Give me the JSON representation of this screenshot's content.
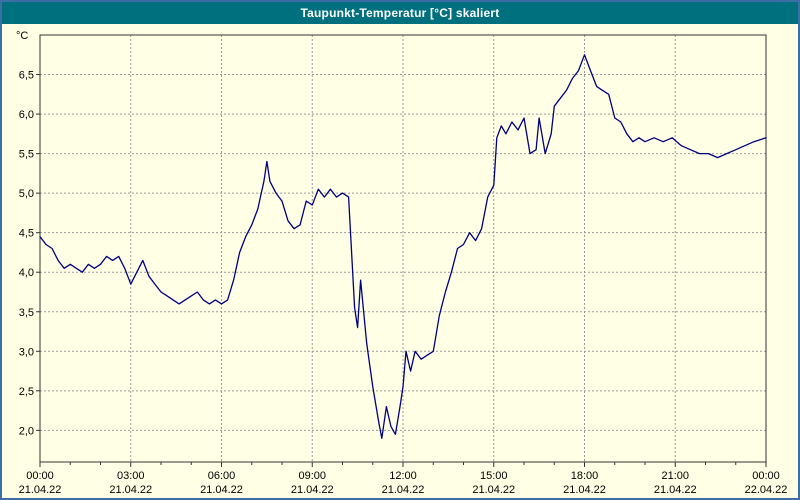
{
  "window": {
    "title": "Taupunkt-Temperatur [°C] skaliert"
  },
  "colors": {
    "background": "#ffffe6",
    "border": "#3a6ea5",
    "titlebar": "#00707e",
    "title_text": "#ffffff",
    "grid": "#999999",
    "frame": "#333333",
    "text": "#000000",
    "line": "#000080"
  },
  "chart_data": {
    "type": "line",
    "title": "Taupunkt-Temperatur [°C] skaliert",
    "unit_label": "°C",
    "xlabel": "",
    "ylabel": "Taupunkt-Temperatur",
    "xlim": [
      0,
      24
    ],
    "ylim": [
      1.6,
      7.0
    ],
    "grid": "dashed",
    "legend": "none",
    "line_color": "#000080",
    "y_ticks": [
      {
        "value": 2.0,
        "label": "2,0"
      },
      {
        "value": 2.5,
        "label": "2,5"
      },
      {
        "value": 3.0,
        "label": "3,0"
      },
      {
        "value": 3.5,
        "label": "3,5"
      },
      {
        "value": 4.0,
        "label": "4,0"
      },
      {
        "value": 4.5,
        "label": "4,5"
      },
      {
        "value": 5.0,
        "label": "5,0"
      },
      {
        "value": 5.5,
        "label": "5,5"
      },
      {
        "value": 6.0,
        "label": "6,0"
      },
      {
        "value": 6.5,
        "label": "6,5"
      }
    ],
    "x_ticks": [
      {
        "hour": 0,
        "time": "00:00",
        "date": "21.04.22"
      },
      {
        "hour": 3,
        "time": "03:00",
        "date": "21.04.22"
      },
      {
        "hour": 6,
        "time": "06:00",
        "date": "21.04.22"
      },
      {
        "hour": 9,
        "time": "09:00",
        "date": "21.04.22"
      },
      {
        "hour": 12,
        "time": "12:00",
        "date": "21.04.22"
      },
      {
        "hour": 15,
        "time": "15:00",
        "date": "21.04.22"
      },
      {
        "hour": 18,
        "time": "18:00",
        "date": "21.04.22"
      },
      {
        "hour": 21,
        "time": "21:00",
        "date": "21.04.22"
      },
      {
        "hour": 24,
        "time": "00:00",
        "date": "22.04.22"
      }
    ],
    "series": [
      {
        "name": "Taupunkt-Temperatur",
        "points": [
          [
            0,
            4.45
          ],
          [
            0.2,
            4.35
          ],
          [
            0.4,
            4.3
          ],
          [
            0.6,
            4.15
          ],
          [
            0.8,
            4.05
          ],
          [
            1,
            4.1
          ],
          [
            1.2,
            4.05
          ],
          [
            1.4,
            4.0
          ],
          [
            1.6,
            4.1
          ],
          [
            1.8,
            4.05
          ],
          [
            2,
            4.1
          ],
          [
            2.2,
            4.2
          ],
          [
            2.4,
            4.15
          ],
          [
            2.6,
            4.2
          ],
          [
            2.8,
            4.05
          ],
          [
            3,
            3.85
          ],
          [
            3.2,
            4.0
          ],
          [
            3.4,
            4.15
          ],
          [
            3.6,
            3.95
          ],
          [
            3.8,
            3.85
          ],
          [
            4,
            3.75
          ],
          [
            4.2,
            3.7
          ],
          [
            4.4,
            3.65
          ],
          [
            4.6,
            3.6
          ],
          [
            4.8,
            3.65
          ],
          [
            5,
            3.7
          ],
          [
            5.2,
            3.75
          ],
          [
            5.4,
            3.65
          ],
          [
            5.6,
            3.6
          ],
          [
            5.8,
            3.65
          ],
          [
            6,
            3.6
          ],
          [
            6.2,
            3.65
          ],
          [
            6.4,
            3.9
          ],
          [
            6.6,
            4.25
          ],
          [
            6.8,
            4.45
          ],
          [
            7,
            4.6
          ],
          [
            7.2,
            4.8
          ],
          [
            7.4,
            5.15
          ],
          [
            7.5,
            5.4
          ],
          [
            7.6,
            5.15
          ],
          [
            7.8,
            5.0
          ],
          [
            8,
            4.9
          ],
          [
            8.2,
            4.65
          ],
          [
            8.4,
            4.55
          ],
          [
            8.6,
            4.6
          ],
          [
            8.8,
            4.9
          ],
          [
            9,
            4.85
          ],
          [
            9.2,
            5.05
          ],
          [
            9.4,
            4.95
          ],
          [
            9.6,
            5.05
          ],
          [
            9.8,
            4.95
          ],
          [
            10,
            5.0
          ],
          [
            10.2,
            4.95
          ],
          [
            10.4,
            3.55
          ],
          [
            10.5,
            3.3
          ],
          [
            10.6,
            3.9
          ],
          [
            10.8,
            3.1
          ],
          [
            11,
            2.55
          ],
          [
            11.2,
            2.1
          ],
          [
            11.3,
            1.9
          ],
          [
            11.45,
            2.3
          ],
          [
            11.6,
            2.05
          ],
          [
            11.75,
            1.95
          ],
          [
            11.9,
            2.3
          ],
          [
            12,
            2.55
          ],
          [
            12.1,
            3.0
          ],
          [
            12.25,
            2.75
          ],
          [
            12.4,
            3.0
          ],
          [
            12.6,
            2.9
          ],
          [
            12.8,
            2.95
          ],
          [
            13,
            3.0
          ],
          [
            13.2,
            3.45
          ],
          [
            13.4,
            3.75
          ],
          [
            13.6,
            4.0
          ],
          [
            13.8,
            4.3
          ],
          [
            14,
            4.35
          ],
          [
            14.2,
            4.5
          ],
          [
            14.4,
            4.4
          ],
          [
            14.6,
            4.55
          ],
          [
            14.8,
            4.95
          ],
          [
            15,
            5.1
          ],
          [
            15.1,
            5.7
          ],
          [
            15.25,
            5.85
          ],
          [
            15.4,
            5.75
          ],
          [
            15.6,
            5.9
          ],
          [
            15.8,
            5.8
          ],
          [
            16,
            5.95
          ],
          [
            16.2,
            5.5
          ],
          [
            16.4,
            5.55
          ],
          [
            16.5,
            5.95
          ],
          [
            16.7,
            5.5
          ],
          [
            16.9,
            5.75
          ],
          [
            17,
            6.1
          ],
          [
            17.2,
            6.2
          ],
          [
            17.4,
            6.3
          ],
          [
            17.6,
            6.45
          ],
          [
            17.8,
            6.55
          ],
          [
            18,
            6.75
          ],
          [
            18.2,
            6.55
          ],
          [
            18.4,
            6.35
          ],
          [
            18.6,
            6.3
          ],
          [
            18.8,
            6.25
          ],
          [
            19,
            5.95
          ],
          [
            19.2,
            5.9
          ],
          [
            19.4,
            5.75
          ],
          [
            19.6,
            5.65
          ],
          [
            19.8,
            5.7
          ],
          [
            20,
            5.65
          ],
          [
            20.3,
            5.7
          ],
          [
            20.6,
            5.65
          ],
          [
            20.9,
            5.7
          ],
          [
            21.2,
            5.6
          ],
          [
            21.5,
            5.55
          ],
          [
            21.8,
            5.5
          ],
          [
            22.1,
            5.5
          ],
          [
            22.4,
            5.45
          ],
          [
            22.7,
            5.5
          ],
          [
            23,
            5.55
          ],
          [
            23.3,
            5.6
          ],
          [
            23.6,
            5.65
          ],
          [
            24,
            5.7
          ]
        ]
      }
    ]
  }
}
